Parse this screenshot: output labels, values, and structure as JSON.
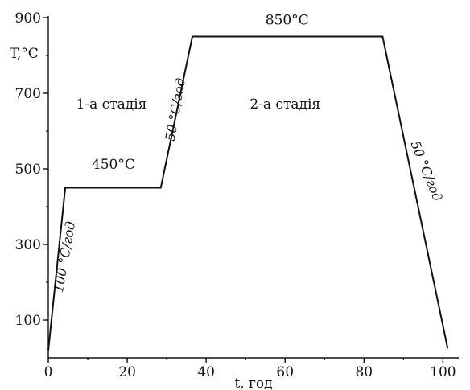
{
  "chart_data": {
    "type": "line",
    "title": "",
    "xlabel": "t, год",
    "ylabel": "T,°C",
    "xlim": [
      0,
      104
    ],
    "ylim": [
      0,
      900
    ],
    "xticks": [
      0,
      20,
      40,
      60,
      80,
      100
    ],
    "yticks": [
      100,
      300,
      500,
      700,
      900
    ],
    "grid": false,
    "legend": "none",
    "series": [
      {
        "x": [
          0,
          4.3,
          28.5,
          36.5,
          84.7,
          101.2
        ],
        "y": [
          20,
          450,
          450,
          850,
          850,
          25
        ]
      }
    ],
    "annotations": [
      {
        "id": "stage1",
        "text": "1-а стадія",
        "x": 16,
        "y": 660,
        "rotation": 0
      },
      {
        "id": "stage2",
        "text": "2-а стадія",
        "x": 60,
        "y": 660,
        "rotation": 0
      },
      {
        "id": "t450",
        "text": "450°C",
        "x": 16.5,
        "y": 500,
        "rotation": 0
      },
      {
        "id": "t850",
        "text": "850°C",
        "x": 60.5,
        "y": 882,
        "rotation": 0
      },
      {
        "id": "rate100",
        "text": "100 °C/год",
        "x": 5.2,
        "y": 265,
        "rotation": -80
      },
      {
        "id": "rate50a",
        "text": "50 °C/год",
        "x": 33.3,
        "y": 655,
        "rotation": -80
      },
      {
        "id": "rate50b",
        "text": "50 °C/год",
        "x": 94.8,
        "y": 490,
        "rotation": 68
      }
    ]
  }
}
